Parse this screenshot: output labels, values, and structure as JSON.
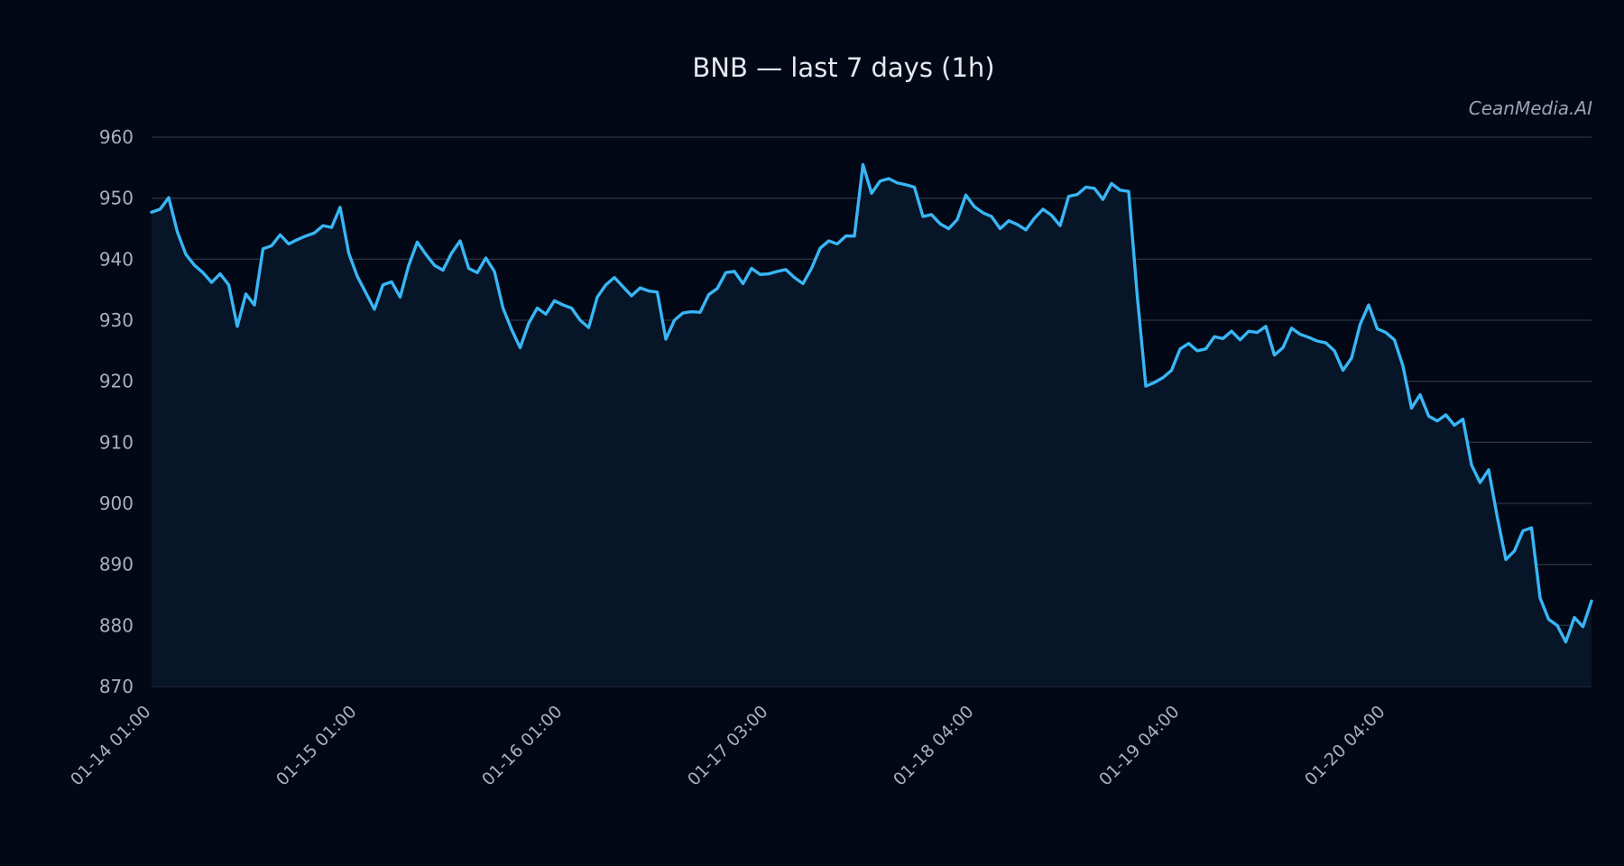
{
  "watermark": "CeanMedia.AI",
  "colors": {
    "background": "#030816",
    "line": "#38b6f5",
    "fill": "#071528",
    "grid": "#2a3242",
    "text": "#a9b0bd"
  },
  "chart_data": {
    "type": "area",
    "title": "BNB — last 7 days (1h)",
    "xlabel": "",
    "ylabel": "",
    "ylim": [
      870,
      960
    ],
    "yticks": [
      870,
      880,
      890,
      900,
      910,
      920,
      930,
      940,
      950,
      960
    ],
    "grid": true,
    "legend": "none",
    "xticks": [
      {
        "label": "01-14 01:00",
        "index": 0
      },
      {
        "label": "01-15 01:00",
        "index": 24
      },
      {
        "label": "01-16 01:00",
        "index": 48
      },
      {
        "label": "01-17 03:00",
        "index": 72
      },
      {
        "label": "01-18 04:00",
        "index": 96
      },
      {
        "label": "01-19 04:00",
        "index": 120
      },
      {
        "label": "01-20 04:00",
        "index": 144
      }
    ],
    "series": [
      {
        "values": [
          947.7,
          948.2,
          950.1,
          944.5,
          940.8,
          939.0,
          937.8,
          936.2,
          937.6,
          935.8,
          929.0,
          934.3,
          932.5,
          941.7,
          942.2,
          944.0,
          942.5,
          943.2,
          943.8,
          944.3,
          945.5,
          945.2,
          948.5,
          941.0,
          937.2,
          934.5,
          931.8,
          935.8,
          936.3,
          933.8,
          939.0,
          942.8,
          940.8,
          939.0,
          938.2,
          941.0,
          943.0,
          938.5,
          937.8,
          940.2,
          938.0,
          932.0,
          928.5,
          925.5,
          929.5,
          932.0,
          931.0,
          933.2,
          932.5,
          932.0,
          930.0,
          928.8,
          933.8,
          935.8,
          937.0,
          935.5,
          934.0,
          935.3,
          934.8,
          934.6,
          926.9,
          930.0,
          931.2,
          931.4,
          931.3,
          934.2,
          935.2,
          937.8,
          938.0,
          936.0,
          938.5,
          937.5,
          937.6,
          938.0,
          938.3,
          937.0,
          936.0,
          938.5,
          941.8,
          943.0,
          942.5,
          943.8,
          943.8,
          955.5,
          950.8,
          952.8,
          953.2,
          952.5,
          952.2,
          951.8,
          947.0,
          947.3,
          945.8,
          945.0,
          946.5,
          950.5,
          948.6,
          947.6,
          947.0,
          945.0,
          946.3,
          945.7,
          944.8,
          946.7,
          948.2,
          947.2,
          945.5,
          950.3,
          950.6,
          951.8,
          951.6,
          949.8,
          952.4,
          951.3,
          951.1,
          934.0,
          919.2,
          919.8,
          920.6,
          921.8,
          925.3,
          926.2,
          925.0,
          925.3,
          927.3,
          927.0,
          928.2,
          926.8,
          928.2,
          928.0,
          929.0,
          924.3,
          925.5,
          928.7,
          927.7,
          927.2,
          926.6,
          926.3,
          925.0,
          921.8,
          923.8,
          929.3,
          932.5,
          928.6,
          928.0,
          926.8,
          922.5,
          915.6,
          917.8,
          914.3,
          913.5,
          914.5,
          912.8,
          913.8,
          906.3,
          903.4,
          905.5,
          897.8,
          890.8,
          892.2,
          895.5,
          896.0,
          884.5,
          881.0,
          880.0,
          877.3,
          881.3,
          879.8,
          884.0
        ]
      }
    ]
  }
}
